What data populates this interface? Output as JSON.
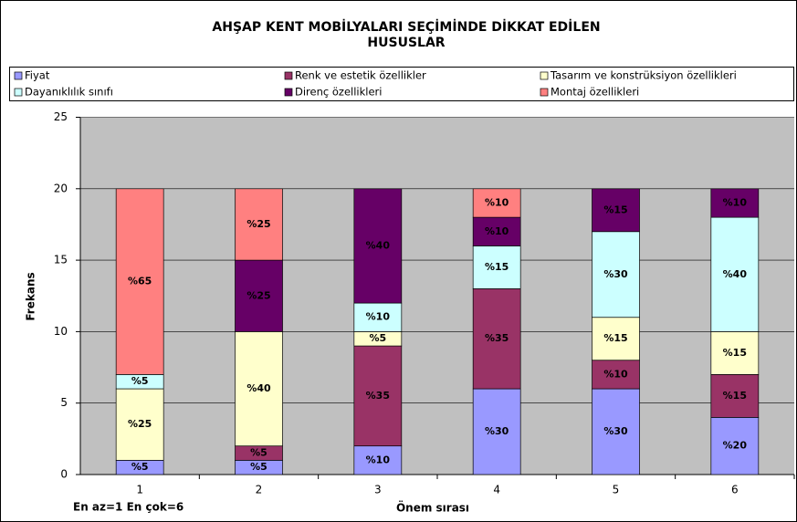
{
  "chart_data": {
    "type": "stacked_bar",
    "title": [
      "AHŞAP KENT MOBİLYALARI SEÇİMİNDE DİKKAT EDİLEN",
      "HUSUSLAR"
    ],
    "ylabel": "Frekans",
    "xlabel": "Önem sırası",
    "annotation": "En az=1 En çok=6",
    "categories": [
      "1",
      "2",
      "3",
      "4",
      "5",
      "6"
    ],
    "ylim": [
      0,
      25
    ],
    "yticks": [
      0,
      5,
      10,
      15,
      20,
      25
    ],
    "grid": true,
    "series": [
      {
        "name": "Fiyat",
        "color": "#9999ff",
        "values": [
          1,
          1,
          2,
          6,
          6,
          4
        ],
        "value_labels": [
          "%5",
          "%5",
          "%10",
          "%30",
          "%30",
          "%20"
        ]
      },
      {
        "name": "Renk ve estetik özellikler",
        "color": "#993366",
        "values": [
          0,
          1,
          7,
          7,
          2,
          3
        ],
        "value_labels": [
          null,
          "%5",
          "%35",
          "%35",
          "%10",
          "%15"
        ]
      },
      {
        "name": "Tasarım ve konstrüksiyon özellikleri",
        "color": "#ffffcc",
        "values": [
          5,
          8,
          1,
          0,
          3,
          3
        ],
        "value_labels": [
          "%25",
          "%40",
          "%5",
          null,
          "%15",
          "%15"
        ]
      },
      {
        "name": "Dayanıklılık sınıfı",
        "color": "#ccffff",
        "values": [
          1,
          0,
          2,
          3,
          6,
          8
        ],
        "value_labels": [
          "%5",
          null,
          "%10",
          "%15",
          "%30",
          "%40"
        ]
      },
      {
        "name": "Direnç özellikleri",
        "color": "#660066",
        "values": [
          0,
          5,
          8,
          2,
          3,
          2
        ],
        "value_labels": [
          null,
          "%25",
          "%40",
          "%10",
          "%15",
          "%10"
        ]
      },
      {
        "name": "Montaj özellikleri",
        "color": "#ff8080",
        "values": [
          13,
          5,
          0,
          2,
          0,
          0
        ],
        "value_labels": [
          "%65",
          "%25",
          null,
          "%10",
          null,
          null
        ]
      }
    ]
  }
}
